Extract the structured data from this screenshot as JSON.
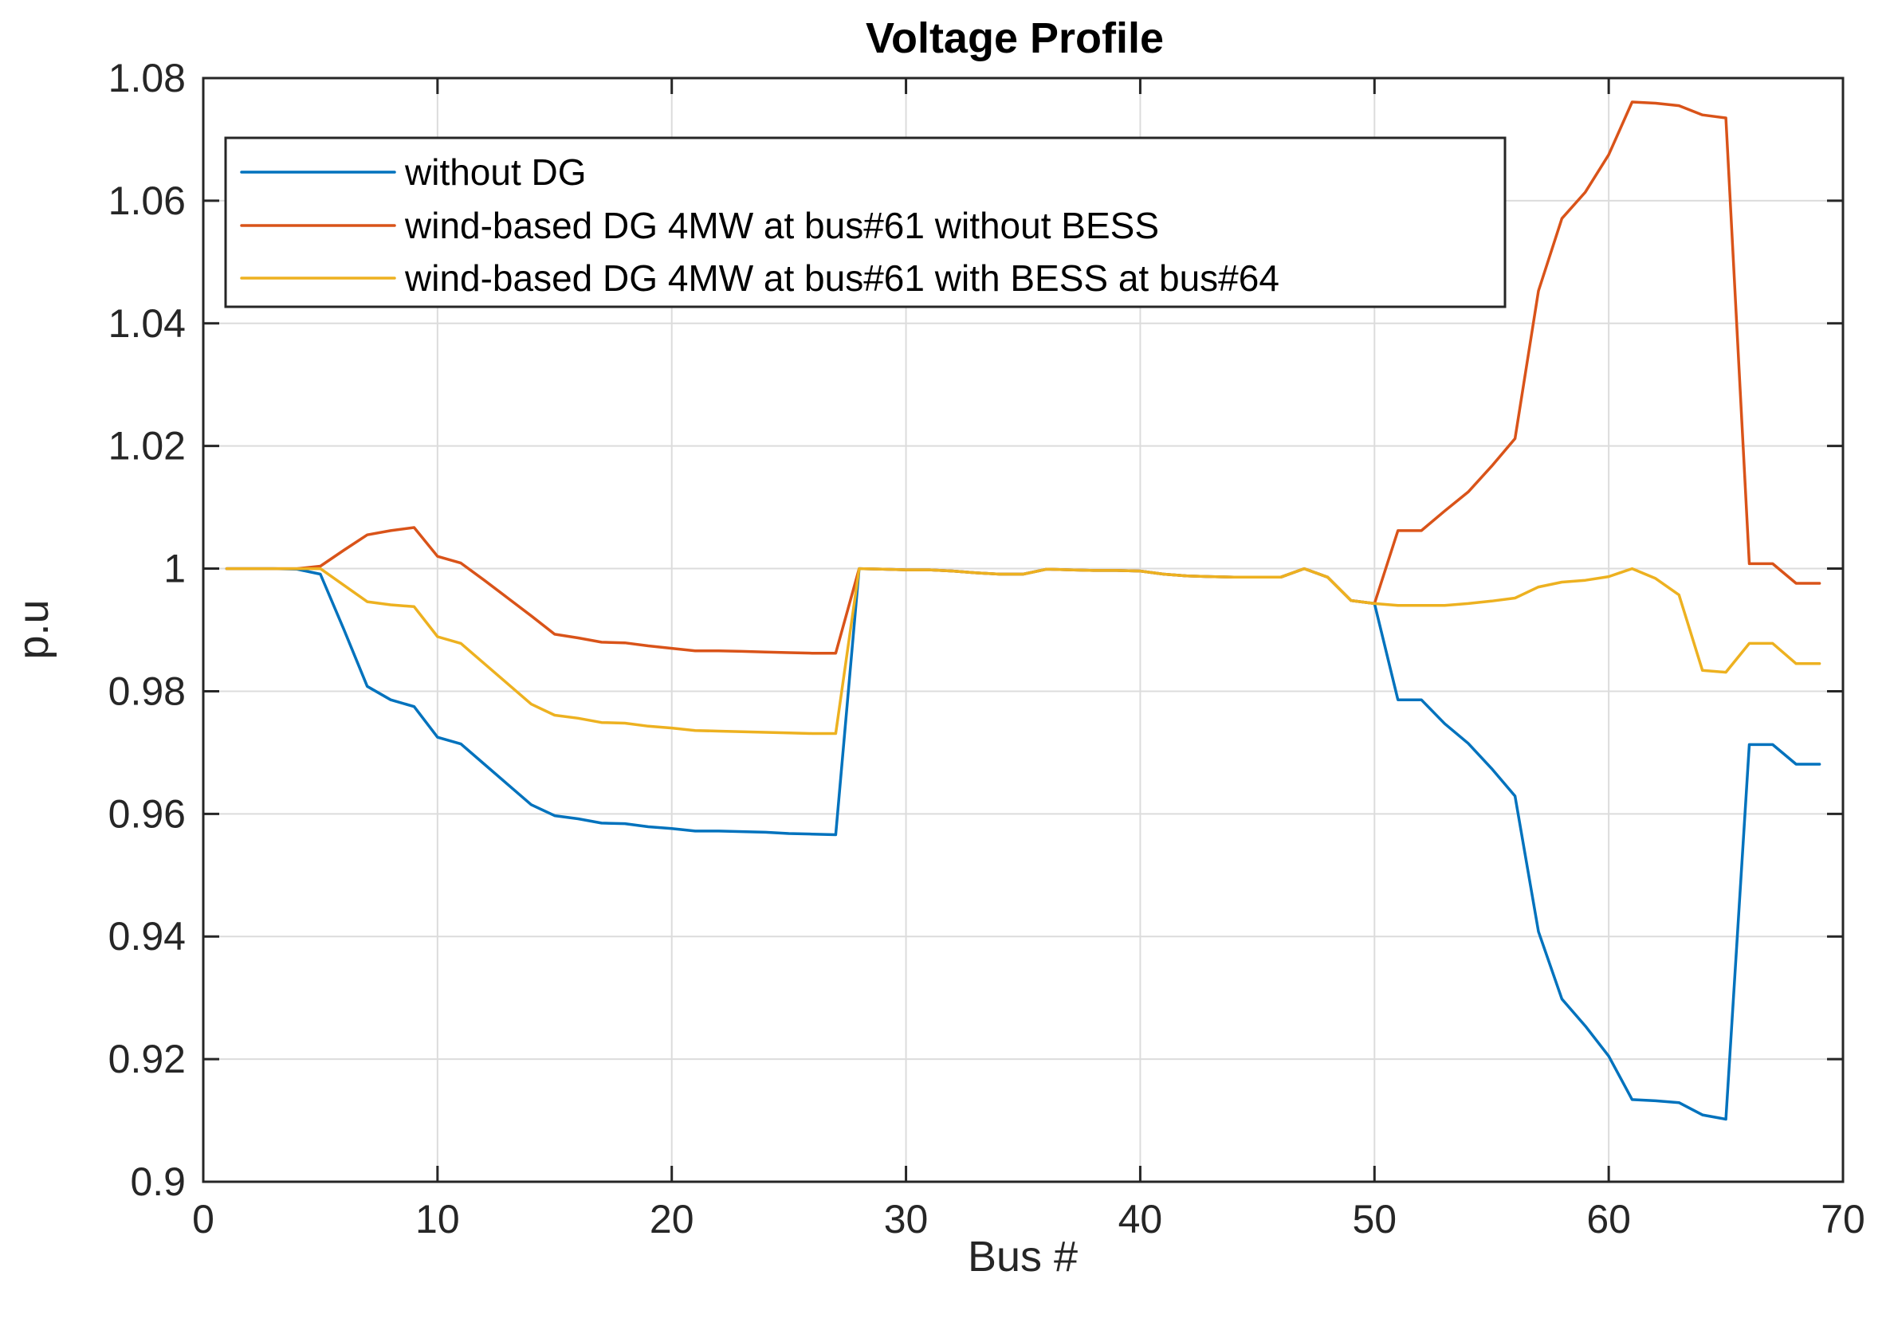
{
  "chart_data": {
    "type": "line",
    "title": "Voltage Profile",
    "xlabel": "Bus #",
    "ylabel": "p.u",
    "xlim": [
      0,
      70
    ],
    "ylim": [
      0.9,
      1.08
    ],
    "xticks": [
      0,
      10,
      20,
      30,
      40,
      50,
      60,
      70
    ],
    "yticks": [
      0.9,
      0.92,
      0.94,
      0.96,
      0.98,
      1,
      1.02,
      1.04,
      1.06,
      1.08
    ],
    "xtick_labels": [
      "0",
      "10",
      "20",
      "30",
      "40",
      "50",
      "60",
      "70"
    ],
    "ytick_labels": [
      "0.9",
      "0.92",
      "0.94",
      "0.96",
      "0.98",
      "1",
      "1.02",
      "1.04",
      "1.06",
      "1.08"
    ],
    "grid": true,
    "legend_position": "top-left",
    "x": [
      1,
      2,
      3,
      4,
      5,
      6,
      7,
      8,
      9,
      10,
      11,
      12,
      13,
      14,
      15,
      16,
      17,
      18,
      19,
      20,
      21,
      22,
      23,
      24,
      25,
      26,
      27,
      28,
      29,
      30,
      31,
      32,
      33,
      34,
      35,
      36,
      37,
      38,
      39,
      40,
      41,
      42,
      43,
      44,
      45,
      46,
      47,
      48,
      49,
      50,
      51,
      52,
      53,
      54,
      55,
      56,
      57,
      58,
      59,
      60,
      61,
      62,
      63,
      64,
      65,
      66,
      67,
      68,
      69
    ],
    "series": [
      {
        "name": "without DG",
        "color": "#0072BD",
        "values": [
          1.0,
          1.0,
          1.0,
          0.9999,
          0.9991,
          0.9901,
          0.9808,
          0.9786,
          0.9775,
          0.9725,
          0.9714,
          0.9681,
          0.9648,
          0.9615,
          0.9597,
          0.9592,
          0.9585,
          0.9584,
          0.9579,
          0.9576,
          0.9572,
          0.9572,
          0.9571,
          0.957,
          0.9568,
          0.9567,
          0.9566,
          1.0,
          0.9999,
          0.9998,
          0.9998,
          0.9996,
          0.9993,
          0.9991,
          0.9991,
          0.9999,
          0.9998,
          0.9997,
          0.9997,
          0.9996,
          0.9991,
          0.9988,
          0.9987,
          0.9986,
          0.9986,
          0.9986,
          1.0,
          0.9986,
          0.9948,
          0.9943,
          0.9786,
          0.9786,
          0.9747,
          0.9715,
          0.9674,
          0.9629,
          0.9408,
          0.9298,
          0.9254,
          0.9205,
          0.9134,
          0.9132,
          0.9129,
          0.9109,
          0.9102,
          0.9713,
          0.9713,
          0.9681,
          0.9681
        ]
      },
      {
        "name": "wind-based DG 4MW at bus#61 without BESS",
        "color": "#D95319",
        "values": [
          1.0,
          1.0,
          1.0,
          1.0,
          1.0004,
          1.003,
          1.0055,
          1.0062,
          1.0067,
          1.002,
          1.0009,
          0.9981,
          0.9952,
          0.9923,
          0.9893,
          0.9887,
          0.988,
          0.9879,
          0.9874,
          0.987,
          0.9866,
          0.9866,
          0.9865,
          0.9864,
          0.9863,
          0.9862,
          0.9862,
          1.0,
          0.9999,
          0.9998,
          0.9998,
          0.9996,
          0.9993,
          0.9991,
          0.9991,
          0.9999,
          0.9998,
          0.9997,
          0.9997,
          0.9996,
          0.9991,
          0.9988,
          0.9987,
          0.9986,
          0.9986,
          0.9986,
          1.0,
          0.9986,
          0.9948,
          0.9943,
          1.0062,
          1.0062,
          1.0094,
          1.0125,
          1.0167,
          1.0212,
          1.0453,
          1.0571,
          1.0614,
          1.0675,
          1.0761,
          1.0759,
          1.0755,
          1.074,
          1.0735,
          1.0008,
          1.0008,
          0.9976,
          0.9976
        ]
      },
      {
        "name": "wind-based DG 4MW at bus#61 with BESS at bus#64",
        "color": "#EDB120",
        "values": [
          1.0,
          1.0,
          1.0,
          1.0,
          1.0,
          0.9973,
          0.9946,
          0.9941,
          0.9938,
          0.9889,
          0.9878,
          0.9845,
          0.9812,
          0.9779,
          0.9761,
          0.9756,
          0.9749,
          0.9748,
          0.9743,
          0.974,
          0.9736,
          0.9735,
          0.9734,
          0.9733,
          0.9732,
          0.9731,
          0.9731,
          1.0,
          0.9999,
          0.9998,
          0.9998,
          0.9996,
          0.9993,
          0.9991,
          0.9991,
          0.9999,
          0.9998,
          0.9997,
          0.9997,
          0.9996,
          0.9991,
          0.9988,
          0.9987,
          0.9986,
          0.9986,
          0.9986,
          1.0,
          0.9986,
          0.9948,
          0.9943,
          0.994,
          0.994,
          0.994,
          0.9943,
          0.9947,
          0.9952,
          0.997,
          0.9978,
          0.9981,
          0.9987,
          1.0,
          0.9984,
          0.9957,
          0.9834,
          0.9831,
          0.9878,
          0.9878,
          0.9845,
          0.9845
        ]
      }
    ]
  }
}
